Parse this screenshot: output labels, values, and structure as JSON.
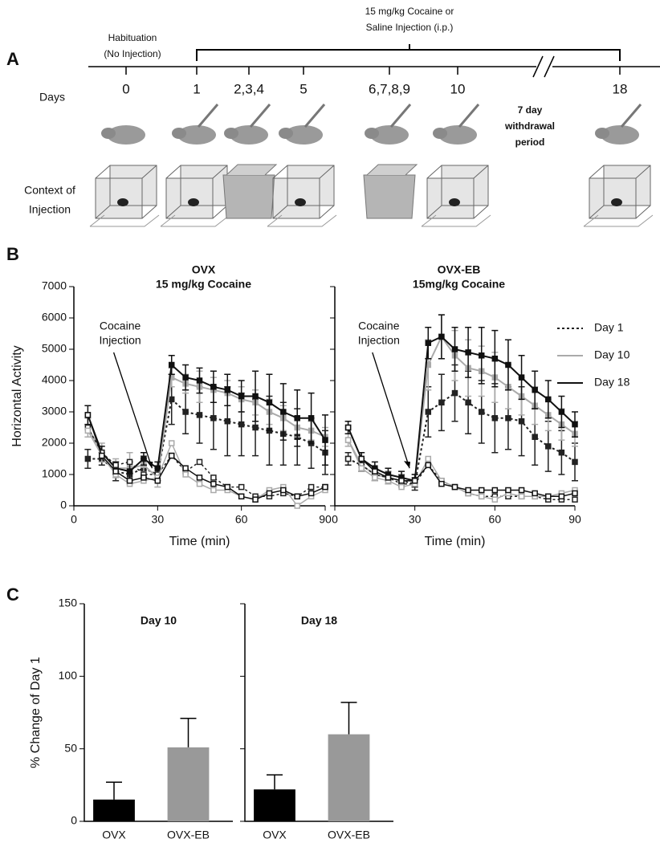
{
  "panel_labels": [
    "A",
    "B",
    "C"
  ],
  "timeline": {
    "habituation": [
      "Habituation",
      "(No Injection)"
    ],
    "treatment": [
      "15 mg/kg Cocaine or",
      "Saline Injection (i.p.)"
    ],
    "days_label": "Days",
    "days": [
      "0",
      "1",
      "2,3,4",
      "5",
      "6,7,8,9",
      "10",
      "18"
    ],
    "withdrawal": [
      "7 day",
      "withdrawal",
      "period"
    ],
    "context_label": [
      "Context of",
      "Injection"
    ]
  },
  "chart_data": [
    {
      "type": "line",
      "title": "OVX",
      "subtitle": "15 mg/kg Cocaine",
      "xlabel": "Time (min)",
      "ylabel": "Horizontal Activity",
      "annotation": [
        "Cocaine",
        "Injection"
      ],
      "x": [
        5,
        10,
        15,
        20,
        25,
        30,
        35,
        40,
        45,
        50,
        55,
        60,
        65,
        70,
        75,
        80,
        85,
        90
      ],
      "xlim": [
        0,
        90
      ],
      "xticks": [
        0,
        30,
        60,
        90
      ],
      "ylim": [
        0,
        7000
      ],
      "yticks": [
        0,
        1000,
        2000,
        3000,
        4000,
        5000,
        6000,
        7000
      ],
      "series": [
        {
          "name": "Day 1",
          "color": "#222222",
          "dash": "3,3",
          "values": [
            1500,
            1500,
            1100,
            1000,
            1200,
            1000,
            3400,
            3000,
            2900,
            2800,
            2700,
            2600,
            2500,
            2400,
            2300,
            2200,
            2000,
            1700
          ],
          "errors": [
            300,
            200,
            300,
            200,
            300,
            200,
            800,
            700,
            900,
            1000,
            1100,
            1000,
            900,
            1100,
            1000,
            900,
            800,
            700
          ]
        },
        {
          "name": "Day 10",
          "color": "#aaaaaa",
          "values": [
            2500,
            1700,
            1200,
            1200,
            1300,
            900,
            4100,
            3900,
            3800,
            3700,
            3600,
            3400,
            3300,
            3000,
            2800,
            2500,
            2400,
            2200
          ],
          "errors": [
            300,
            300,
            300,
            500,
            300,
            300,
            300,
            300,
            500,
            400,
            400,
            400,
            400,
            400,
            400,
            300,
            300,
            300
          ]
        },
        {
          "name": "Day 18",
          "color": "#111111",
          "values": [
            2900,
            1700,
            1200,
            1100,
            1500,
            1200,
            4500,
            4100,
            4000,
            3800,
            3700,
            3500,
            3500,
            3300,
            3000,
            2800,
            2800,
            2100
          ],
          "errors": [
            300,
            200,
            200,
            300,
            200,
            200,
            300,
            400,
            400,
            500,
            500,
            500,
            800,
            900,
            900,
            900,
            800,
            800
          ]
        },
        {
          "color": "#222222",
          "dash": "3,3",
          "open": true,
          "values": [
            2500,
            1700,
            1300,
            1400,
            1000,
            1000,
            1600,
            1100,
            1400,
            900,
            600,
            600,
            300,
            300,
            400,
            300,
            600,
            600
          ]
        },
        {
          "color": "#aaaaaa",
          "open": true,
          "values": [
            2400,
            1600,
            1000,
            700,
            800,
            900,
            2000,
            1000,
            700,
            500,
            500,
            300,
            200,
            500,
            600,
            0,
            300,
            500
          ]
        },
        {
          "color": "#111111",
          "open": true,
          "values": [
            2900,
            1600,
            1100,
            800,
            900,
            800,
            1600,
            1200,
            900,
            700,
            600,
            300,
            200,
            400,
            500,
            300,
            400,
            600
          ]
        }
      ]
    },
    {
      "type": "line",
      "title": "OVX-EB",
      "subtitle": "15mg/kg Cocaine",
      "xlabel": "Time (min)",
      "ytick_labels": false,
      "legend": "upper right",
      "annotation": [
        "Cocaine",
        "Injection"
      ],
      "x": [
        5,
        10,
        15,
        20,
        25,
        30,
        35,
        40,
        45,
        50,
        55,
        60,
        65,
        70,
        75,
        80,
        85,
        90
      ],
      "xlim": [
        0,
        90
      ],
      "xticks": [
        0,
        30,
        60,
        90
      ],
      "ylim": [
        0,
        7000
      ],
      "yticks": [
        0,
        1000,
        2000,
        3000,
        4000,
        5000,
        6000,
        7000
      ],
      "series": [
        {
          "name": "Day 1",
          "color": "#222222",
          "dash": "3,3",
          "values": [
            1500,
            1300,
            1000,
            900,
            800,
            700,
            3000,
            3300,
            3600,
            3300,
            3000,
            2800,
            2800,
            2700,
            2200,
            1900,
            1700,
            1400
          ],
          "errors": [
            200,
            200,
            200,
            200,
            200,
            200,
            800,
            900,
            900,
            1000,
            1000,
            1100,
            1000,
            1100,
            900,
            800,
            700,
            600
          ]
        },
        {
          "name": "Day 10",
          "color": "#aaaaaa",
          "values": [
            2100,
            1300,
            1000,
            900,
            800,
            800,
            4500,
            5400,
            4800,
            4400,
            4300,
            4100,
            3800,
            3500,
            3200,
            2900,
            2600,
            2300
          ],
          "errors": [
            200,
            200,
            200,
            200,
            200,
            200,
            800,
            700,
            800,
            900,
            800,
            800,
            700,
            600,
            600,
            500,
            500,
            400
          ]
        },
        {
          "name": "Day 18",
          "color": "#111111",
          "values": [
            2500,
            1500,
            1200,
            1000,
            900,
            800,
            5200,
            5400,
            5000,
            4900,
            4800,
            4700,
            4500,
            4100,
            3700,
            3400,
            3000,
            2600
          ],
          "errors": [
            200,
            200,
            200,
            200,
            200,
            200,
            500,
            700,
            700,
            800,
            900,
            900,
            800,
            700,
            600,
            600,
            500,
            400
          ]
        },
        {
          "color": "#222222",
          "dash": "3,3",
          "open": true,
          "values": [
            1500,
            1300,
            1000,
            900,
            700,
            700,
            1300,
            800,
            600,
            400,
            300,
            300,
            300,
            300,
            300,
            200,
            200,
            200
          ]
        },
        {
          "color": "#aaaaaa",
          "open": true,
          "values": [
            2100,
            1200,
            900,
            800,
            600,
            700,
            1500,
            800,
            600,
            400,
            300,
            200,
            400,
            300,
            300,
            300,
            400,
            500
          ]
        },
        {
          "color": "#111111",
          "open": true,
          "values": [
            2500,
            1500,
            1100,
            900,
            800,
            800,
            1300,
            700,
            600,
            500,
            500,
            500,
            500,
            500,
            400,
            300,
            300,
            400
          ]
        }
      ]
    },
    {
      "type": "bar",
      "title": "Day 10",
      "ylabel": "% Change of Day 1",
      "categories": [
        "OVX",
        "OVX-EB"
      ],
      "values": [
        15,
        51
      ],
      "errors": [
        12,
        20
      ],
      "colors": [
        "#000000",
        "#999999"
      ],
      "ylim": [
        0,
        150
      ],
      "yticks": [
        0,
        50,
        100,
        150
      ]
    },
    {
      "type": "bar",
      "title": "Day 18",
      "ytick_labels": false,
      "categories": [
        "OVX",
        "OVX-EB"
      ],
      "values": [
        22,
        60
      ],
      "errors": [
        10,
        22
      ],
      "colors": [
        "#000000",
        "#999999"
      ],
      "ylim": [
        0,
        150
      ],
      "yticks": [
        0,
        50,
        100,
        150
      ]
    }
  ]
}
